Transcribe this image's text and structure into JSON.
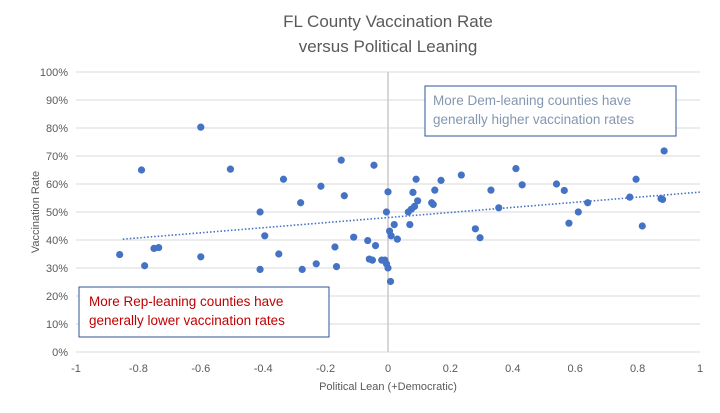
{
  "chart_data": {
    "type": "scatter",
    "title": [
      "FL County Vaccination Rate",
      "versus Political Leaning"
    ],
    "xlabel": "Political Lean (+Democratic)",
    "ylabel": "Vaccination Rate",
    "xlim": [
      -1,
      1
    ],
    "ylim": [
      0,
      1
    ],
    "x_ticks": [
      -1,
      -0.8,
      -0.6,
      -0.4,
      -0.2,
      0,
      0.2,
      0.4,
      0.6,
      0.8,
      1
    ],
    "x_tick_labels": [
      "-1",
      "-0.8",
      "-0.6",
      "-0.4",
      "-0.2",
      "0",
      "0.2",
      "0.4",
      "0.6",
      "0.8",
      "1"
    ],
    "y_ticks": [
      0,
      0.1,
      0.2,
      0.3,
      0.4,
      0.5,
      0.6,
      0.7,
      0.8,
      0.9,
      1.0
    ],
    "y_tick_labels": [
      "0%",
      "10%",
      "20%",
      "30%",
      "40%",
      "50%",
      "60%",
      "70%",
      "80%",
      "90%",
      "100%"
    ],
    "grid": "horizontal",
    "marker_color": "#4472c4",
    "trendline": {
      "type": "linear",
      "style": "dotted",
      "color": "#4472c4",
      "x": [
        -0.85,
        1.0
      ],
      "y": [
        0.403,
        0.571
      ]
    },
    "annotations": [
      {
        "lines": [
          "More Dem-leaning counties have",
          "generally higher vaccination rates"
        ],
        "color": "#8497b0",
        "border": "#2f5597"
      },
      {
        "lines": [
          "More Rep-leaning counties have",
          "generally lower vaccination rates"
        ],
        "color": "#c00000",
        "border": "#2f5597"
      }
    ],
    "points": [
      {
        "x": -0.86,
        "y": 0.348
      },
      {
        "x": -0.79,
        "y": 0.65
      },
      {
        "x": -0.78,
        "y": 0.308
      },
      {
        "x": -0.75,
        "y": 0.37
      },
      {
        "x": -0.735,
        "y": 0.373
      },
      {
        "x": -0.6,
        "y": 0.803
      },
      {
        "x": -0.6,
        "y": 0.34
      },
      {
        "x": -0.505,
        "y": 0.653
      },
      {
        "x": -0.41,
        "y": 0.5
      },
      {
        "x": -0.41,
        "y": 0.295
      },
      {
        "x": -0.395,
        "y": 0.415
      },
      {
        "x": -0.35,
        "y": 0.35
      },
      {
        "x": -0.335,
        "y": 0.617
      },
      {
        "x": -0.28,
        "y": 0.533
      },
      {
        "x": -0.275,
        "y": 0.295
      },
      {
        "x": -0.23,
        "y": 0.315
      },
      {
        "x": -0.215,
        "y": 0.592
      },
      {
        "x": -0.17,
        "y": 0.375
      },
      {
        "x": -0.165,
        "y": 0.305
      },
      {
        "x": -0.15,
        "y": 0.685
      },
      {
        "x": -0.14,
        "y": 0.558
      },
      {
        "x": -0.11,
        "y": 0.41
      },
      {
        "x": -0.065,
        "y": 0.398
      },
      {
        "x": -0.06,
        "y": 0.332
      },
      {
        "x": -0.05,
        "y": 0.328
      },
      {
        "x": -0.045,
        "y": 0.667
      },
      {
        "x": -0.04,
        "y": 0.38
      },
      {
        "x": -0.02,
        "y": 0.328
      },
      {
        "x": -0.01,
        "y": 0.328
      },
      {
        "x": -0.005,
        "y": 0.315
      },
      {
        "x": 0.0,
        "y": 0.3
      },
      {
        "x": -0.005,
        "y": 0.5
      },
      {
        "x": 0.0,
        "y": 0.572
      },
      {
        "x": 0.005,
        "y": 0.432
      },
      {
        "x": 0.008,
        "y": 0.252
      },
      {
        "x": 0.01,
        "y": 0.415
      },
      {
        "x": 0.02,
        "y": 0.455
      },
      {
        "x": 0.03,
        "y": 0.403
      },
      {
        "x": 0.065,
        "y": 0.5
      },
      {
        "x": 0.07,
        "y": 0.455
      },
      {
        "x": 0.075,
        "y": 0.51
      },
      {
        "x": 0.08,
        "y": 0.57
      },
      {
        "x": 0.085,
        "y": 0.52
      },
      {
        "x": 0.09,
        "y": 0.617
      },
      {
        "x": 0.095,
        "y": 0.54
      },
      {
        "x": 0.14,
        "y": 0.533
      },
      {
        "x": 0.145,
        "y": 0.527
      },
      {
        "x": 0.15,
        "y": 0.578
      },
      {
        "x": 0.17,
        "y": 0.613
      },
      {
        "x": 0.235,
        "y": 0.632
      },
      {
        "x": 0.28,
        "y": 0.44
      },
      {
        "x": 0.295,
        "y": 0.408
      },
      {
        "x": 0.33,
        "y": 0.578
      },
      {
        "x": 0.355,
        "y": 0.515
      },
      {
        "x": 0.41,
        "y": 0.655
      },
      {
        "x": 0.43,
        "y": 0.597
      },
      {
        "x": 0.54,
        "y": 0.6
      },
      {
        "x": 0.565,
        "y": 0.577
      },
      {
        "x": 0.58,
        "y": 0.46
      },
      {
        "x": 0.61,
        "y": 0.5
      },
      {
        "x": 0.64,
        "y": 0.533
      },
      {
        "x": 0.775,
        "y": 0.553
      },
      {
        "x": 0.795,
        "y": 0.617
      },
      {
        "x": 0.815,
        "y": 0.45
      },
      {
        "x": 0.875,
        "y": 0.548
      },
      {
        "x": 0.88,
        "y": 0.545
      },
      {
        "x": 0.885,
        "y": 0.718
      }
    ]
  }
}
